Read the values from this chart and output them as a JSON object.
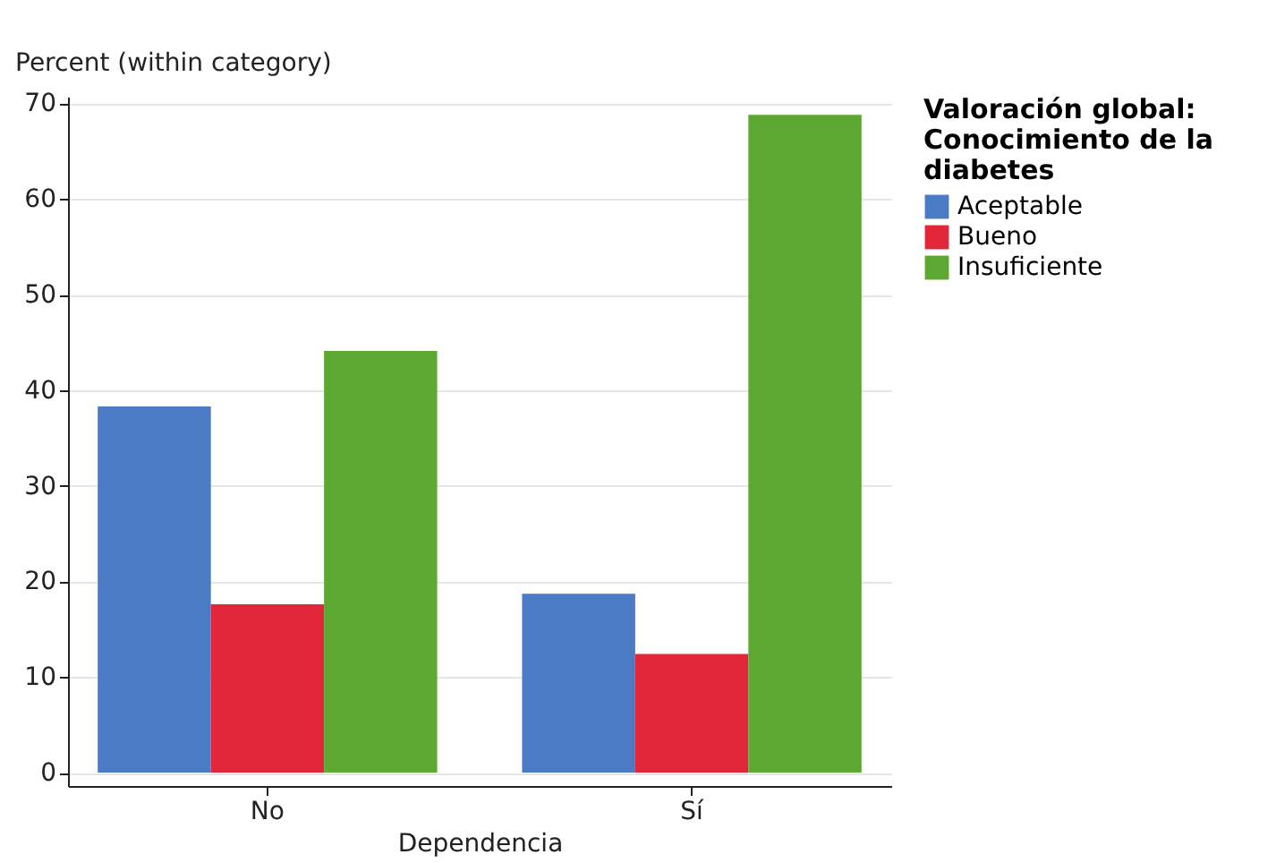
{
  "chart_data": {
    "type": "bar",
    "categories": [
      "No",
      "Sí"
    ],
    "xlabel": "Dependencia",
    "ylabel": "Percent (within category)",
    "legend_title": "Valoración global: Conocimiento de la diabetes",
    "ylim": [
      -1.4,
      70.7
    ],
    "yticks": [
      0,
      10,
      20,
      30,
      40,
      50,
      60,
      70
    ],
    "grid": "y",
    "legend": "right",
    "series": [
      {
        "name": "Aceptable",
        "color": "#4a7bc4",
        "values": [
          38.3,
          18.7
        ]
      },
      {
        "name": "Bueno",
        "color": "#e3273a",
        "values": [
          17.6,
          12.4
        ]
      },
      {
        "name": "Insuficiente",
        "color": "#5da832",
        "values": [
          44.1,
          68.8
        ]
      }
    ]
  }
}
